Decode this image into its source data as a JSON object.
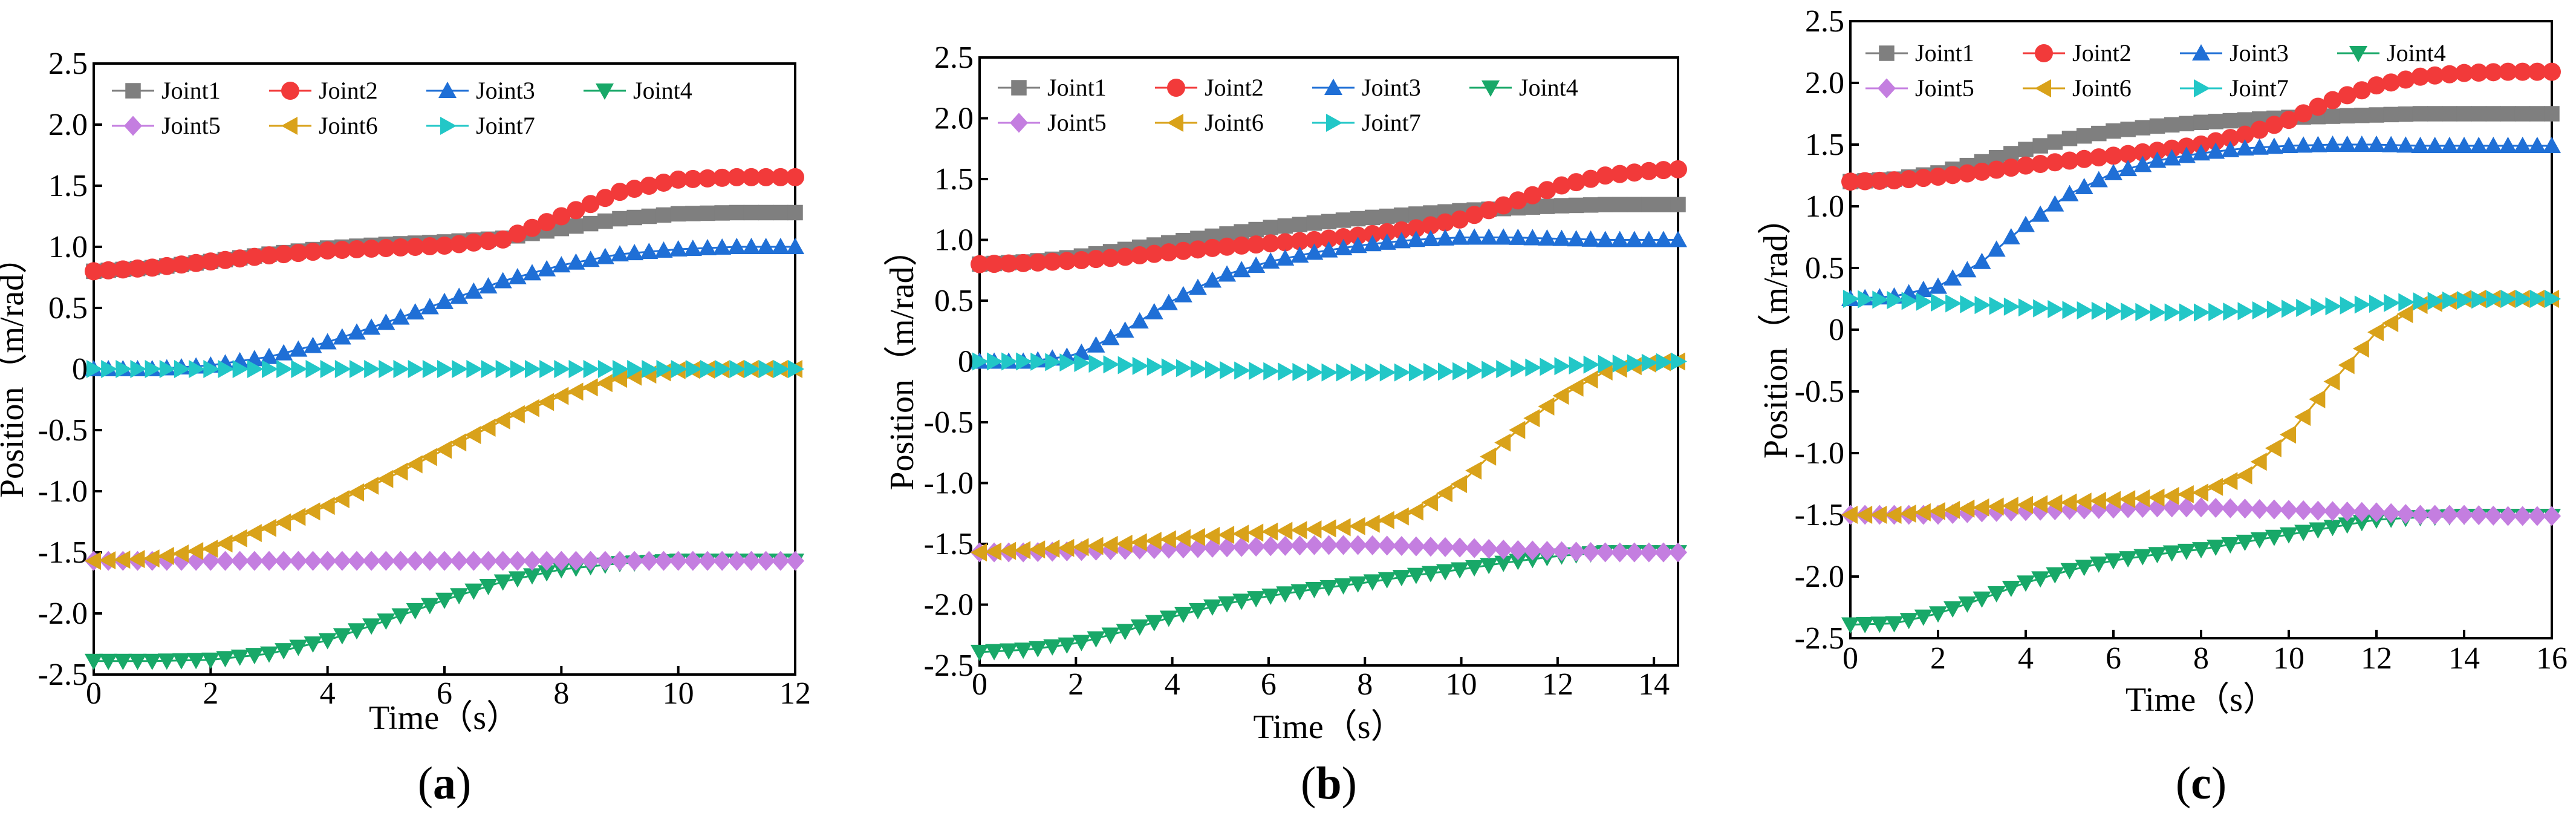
{
  "figure": {
    "series_names": [
      "Joint1",
      "Joint2",
      "Joint3",
      "Joint4",
      "Joint5",
      "Joint6",
      "Joint7"
    ],
    "series_colors": {
      "Joint1": "#7f7f7f",
      "Joint2": "#f23a3a",
      "Joint3": "#1f6fd6",
      "Joint4": "#18a868",
      "Joint5": "#c47ee0",
      "Joint6": "#d9a21a",
      "Joint7": "#22c7c7"
    },
    "series_markers": {
      "Joint1": "square",
      "Joint2": "circle",
      "Joint3": "triangle-up",
      "Joint4": "triangle-down",
      "Joint5": "diamond",
      "Joint6": "triangle-left",
      "Joint7": "triangle-right"
    }
  },
  "chart_data": [
    {
      "type": "scatter",
      "panel_label": "a",
      "xlabel": "Time（s）",
      "ylabel": "Position（m/rad）",
      "xlim": [
        0,
        12
      ],
      "ylim": [
        -2.5,
        2.5
      ],
      "xticks": [
        "0",
        "2",
        "4",
        "6",
        "8",
        "10",
        "12"
      ],
      "yticks": [
        "-2.5",
        "-2.0",
        "-1.5",
        "-1.0",
        "-0.5",
        "0",
        "0.5",
        "1.0",
        "1.5",
        "2.0",
        "2.5"
      ],
      "legend": [
        "Joint1",
        "Joint2",
        "Joint3",
        "Joint4",
        "Joint5",
        "Joint6",
        "Joint7"
      ],
      "legend_position": "top-left",
      "x": [
        0,
        1,
        2,
        3,
        4,
        5,
        6,
        7,
        8,
        9,
        10,
        11,
        12
      ],
      "series": [
        {
          "name": "Joint1",
          "values": [
            0.8,
            0.83,
            0.88,
            0.94,
            0.99,
            1.02,
            1.04,
            1.07,
            1.15,
            1.23,
            1.27,
            1.28,
            1.28
          ]
        },
        {
          "name": "Joint2",
          "values": [
            0.8,
            0.83,
            0.88,
            0.93,
            0.97,
            0.99,
            1.01,
            1.06,
            1.25,
            1.45,
            1.55,
            1.57,
            1.57
          ]
        },
        {
          "name": "Joint3",
          "values": [
            0.0,
            0.0,
            0.03,
            0.1,
            0.22,
            0.38,
            0.55,
            0.72,
            0.85,
            0.94,
            0.98,
            1.0,
            1.0
          ]
        },
        {
          "name": "Joint4",
          "values": [
            -2.39,
            -2.39,
            -2.38,
            -2.33,
            -2.22,
            -2.06,
            -1.89,
            -1.74,
            -1.64,
            -1.59,
            -1.57,
            -1.57,
            -1.57
          ]
        },
        {
          "name": "Joint5",
          "values": [
            -1.57,
            -1.57,
            -1.57,
            -1.57,
            -1.57,
            -1.57,
            -1.57,
            -1.57,
            -1.57,
            -1.57,
            -1.57,
            -1.57,
            -1.57
          ]
        },
        {
          "name": "Joint6",
          "values": [
            -1.57,
            -1.55,
            -1.47,
            -1.3,
            -1.12,
            -0.9,
            -0.66,
            -0.42,
            -0.22,
            -0.08,
            -0.01,
            0.0,
            0.0
          ]
        },
        {
          "name": "Joint7",
          "values": [
            0.0,
            0.0,
            0.0,
            0.0,
            0.0,
            0.0,
            0.0,
            0.0,
            0.0,
            0.0,
            0.0,
            0.0,
            0.0
          ]
        }
      ]
    },
    {
      "type": "scatter",
      "panel_label": "b",
      "xlabel": "Time（s）",
      "ylabel": "Position（m/rad）",
      "xlim": [
        0,
        14.5
      ],
      "ylim": [
        -2.5,
        2.5
      ],
      "xticks": [
        "0",
        "2",
        "4",
        "6",
        "8",
        "10",
        "12",
        "14"
      ],
      "yticks": [
        "-2.5",
        "-2.0",
        "-1.5",
        "-1.0",
        "-0.5",
        "0",
        "0.5",
        "1.0",
        "1.5",
        "2.0",
        "2.5"
      ],
      "legend": [
        "Joint1",
        "Joint2",
        "Joint3",
        "Joint4",
        "Joint5",
        "Joint6",
        "Joint7"
      ],
      "legend_position": "top-left",
      "x": [
        0,
        1,
        2,
        3,
        4,
        5,
        6,
        7,
        8,
        9,
        10,
        11,
        12,
        13,
        14,
        14.5
      ],
      "series": [
        {
          "name": "Joint1",
          "values": [
            0.8,
            0.82,
            0.86,
            0.92,
            0.98,
            1.04,
            1.1,
            1.14,
            1.18,
            1.21,
            1.24,
            1.26,
            1.28,
            1.29,
            1.29,
            1.29
          ]
        },
        {
          "name": "Joint2",
          "values": [
            0.8,
            0.81,
            0.83,
            0.86,
            0.9,
            0.94,
            0.97,
            1.0,
            1.04,
            1.09,
            1.17,
            1.3,
            1.44,
            1.53,
            1.57,
            1.58
          ]
        },
        {
          "name": "Joint3",
          "values": [
            0.0,
            0.0,
            0.05,
            0.25,
            0.5,
            0.7,
            0.82,
            0.9,
            0.96,
            1.0,
            1.02,
            1.02,
            1.01,
            1.0,
            1.0,
            1.0
          ]
        },
        {
          "name": "Joint4",
          "values": [
            -2.39,
            -2.37,
            -2.32,
            -2.22,
            -2.1,
            -2.0,
            -1.93,
            -1.87,
            -1.82,
            -1.76,
            -1.71,
            -1.65,
            -1.6,
            -1.57,
            -1.57,
            -1.57
          ]
        },
        {
          "name": "Joint5",
          "values": [
            -1.57,
            -1.57,
            -1.56,
            -1.55,
            -1.54,
            -1.53,
            -1.52,
            -1.51,
            -1.51,
            -1.52,
            -1.53,
            -1.55,
            -1.56,
            -1.57,
            -1.57,
            -1.57
          ]
        },
        {
          "name": "Joint6",
          "values": [
            -1.57,
            -1.55,
            -1.53,
            -1.5,
            -1.46,
            -1.43,
            -1.4,
            -1.38,
            -1.35,
            -1.25,
            -1.0,
            -0.62,
            -0.3,
            -0.08,
            -0.01,
            0.0
          ]
        },
        {
          "name": "Joint7",
          "values": [
            0.0,
            0.0,
            -0.01,
            -0.03,
            -0.05,
            -0.07,
            -0.08,
            -0.09,
            -0.09,
            -0.09,
            -0.08,
            -0.06,
            -0.04,
            -0.02,
            -0.01,
            0.0
          ]
        }
      ]
    },
    {
      "type": "scatter",
      "panel_label": "c",
      "xlabel": "Time（s）",
      "ylabel": "Position（m/rad）",
      "xlim": [
        0,
        16
      ],
      "ylim": [
        -2.5,
        2.5
      ],
      "xticks": [
        "0",
        "2",
        "4",
        "6",
        "8",
        "10",
        "12",
        "14",
        "16"
      ],
      "yticks": [
        "-2.5",
        "-2.0",
        "-1.5",
        "-1.0",
        "-0.5",
        "0",
        "0.5",
        "1.0",
        "1.5",
        "2.0",
        "2.5"
      ],
      "legend": [
        "Joint1",
        "Joint2",
        "Joint3",
        "Joint4",
        "Joint5",
        "Joint6",
        "Joint7"
      ],
      "legend_position": "top-left",
      "x": [
        0,
        1,
        2,
        3,
        4,
        5,
        6,
        7,
        8,
        9,
        10,
        11,
        12,
        13,
        14,
        15,
        16
      ],
      "series": [
        {
          "name": "Joint1",
          "values": [
            1.2,
            1.22,
            1.27,
            1.36,
            1.46,
            1.55,
            1.61,
            1.65,
            1.68,
            1.7,
            1.72,
            1.73,
            1.74,
            1.75,
            1.75,
            1.75,
            1.75
          ]
        },
        {
          "name": "Joint2",
          "values": [
            1.2,
            1.21,
            1.24,
            1.28,
            1.33,
            1.37,
            1.41,
            1.45,
            1.5,
            1.58,
            1.7,
            1.86,
            1.98,
            2.05,
            2.08,
            2.09,
            2.09
          ]
        },
        {
          "name": "Joint3",
          "values": [
            0.25,
            0.27,
            0.35,
            0.55,
            0.85,
            1.1,
            1.27,
            1.37,
            1.43,
            1.47,
            1.49,
            1.5,
            1.5,
            1.49,
            1.49,
            1.49,
            1.49
          ]
        },
        {
          "name": "Joint4",
          "values": [
            -2.39,
            -2.38,
            -2.3,
            -2.18,
            -2.05,
            -1.95,
            -1.87,
            -1.82,
            -1.78,
            -1.72,
            -1.66,
            -1.6,
            -1.54,
            -1.52,
            -1.51,
            -1.51,
            -1.51
          ]
        },
        {
          "name": "Joint5",
          "values": [
            -1.5,
            -1.5,
            -1.5,
            -1.48,
            -1.47,
            -1.46,
            -1.45,
            -1.44,
            -1.44,
            -1.45,
            -1.46,
            -1.47,
            -1.48,
            -1.5,
            -1.5,
            -1.51,
            -1.51
          ]
        },
        {
          "name": "Joint6",
          "values": [
            -1.5,
            -1.5,
            -1.47,
            -1.44,
            -1.42,
            -1.4,
            -1.38,
            -1.36,
            -1.32,
            -1.18,
            -0.85,
            -0.42,
            -0.02,
            0.2,
            0.25,
            0.25,
            0.25
          ]
        },
        {
          "name": "Joint7",
          "values": [
            0.25,
            0.24,
            0.22,
            0.2,
            0.18,
            0.16,
            0.15,
            0.14,
            0.14,
            0.15,
            0.17,
            0.19,
            0.21,
            0.23,
            0.24,
            0.25,
            0.25
          ]
        }
      ]
    }
  ]
}
